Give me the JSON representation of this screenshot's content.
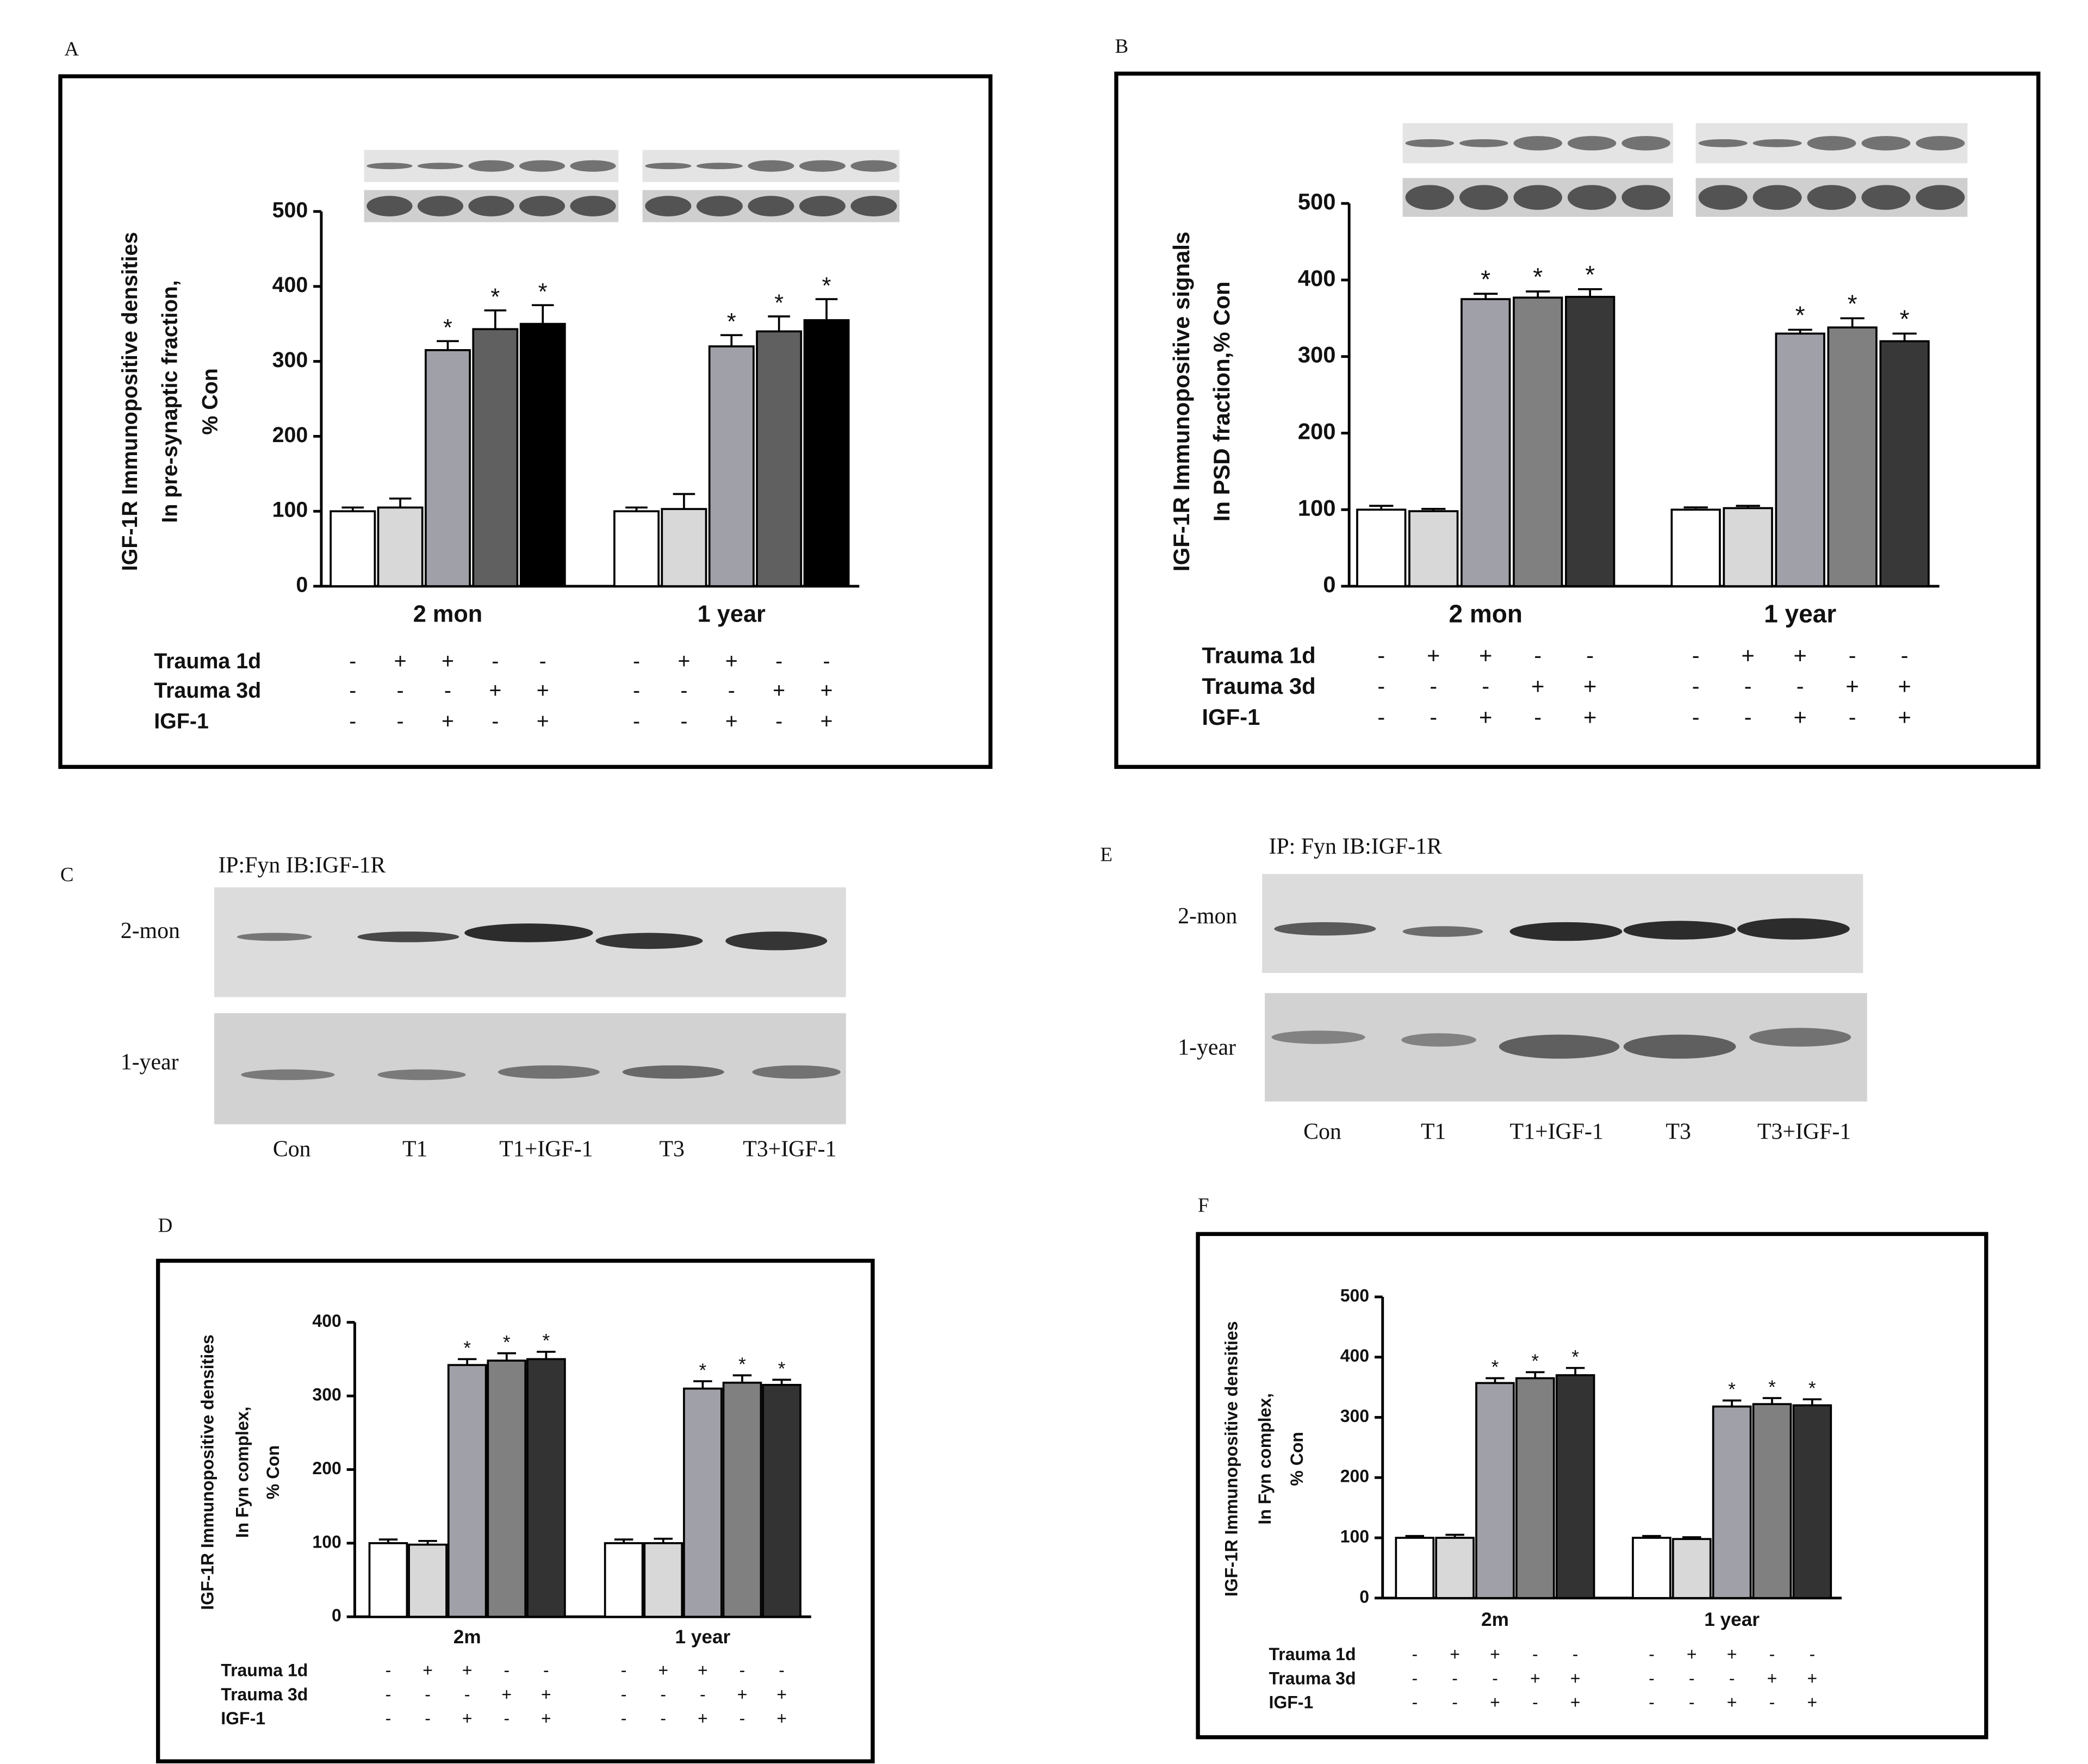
{
  "chart_data": [
    {
      "type": "bar",
      "panel": "A",
      "ylabel": [
        "IGF-1R Immunopositive densities",
        "In pre-synaptic fraction,",
        "% Con"
      ],
      "categories": [
        "2 mon",
        "1 year"
      ],
      "series": [
        {
          "color": "#ffffff",
          "values": [
            100,
            100
          ],
          "errors": [
            5,
            5
          ]
        },
        {
          "color": "#d8d8d8",
          "values": [
            105,
            103
          ],
          "errors": [
            12,
            20
          ]
        },
        {
          "color": "#a0a0a8",
          "values": [
            315,
            320
          ],
          "errors": [
            12,
            15
          ],
          "significance": "*"
        },
        {
          "color": "#606060",
          "values": [
            343,
            340
          ],
          "errors": [
            25,
            20
          ],
          "significance": "*"
        },
        {
          "color": "#000000",
          "values": [
            350,
            355
          ],
          "errors": [
            25,
            28
          ],
          "significance": "*"
        }
      ],
      "ylim": [
        0,
        500
      ],
      "yticks": [
        0,
        100,
        200,
        300,
        400,
        500
      ],
      "treatment_table": [
        {
          "label": "Trauma 1d",
          "signs": [
            "-",
            "+",
            "+",
            "-",
            "-",
            "-",
            "+",
            "+",
            "-",
            "-"
          ]
        },
        {
          "label": "Trauma 3d",
          "signs": [
            "-",
            "-",
            "-",
            "+",
            "+",
            "-",
            "-",
            "-",
            "+",
            "+"
          ]
        },
        {
          "label": "IGF-1",
          "signs": [
            "-",
            "-",
            "+",
            "-",
            "+",
            "-",
            "-",
            "+",
            "-",
            "+"
          ]
        }
      ]
    },
    {
      "type": "bar",
      "panel": "B",
      "ylabel": [
        "IGF-1R Immunopositive signals",
        "In PSD fraction,% Con"
      ],
      "categories": [
        "2 mon",
        "1 year"
      ],
      "series": [
        {
          "color": "#ffffff",
          "values": [
            100,
            100
          ],
          "errors": [
            5,
            3
          ]
        },
        {
          "color": "#d8d8d8",
          "values": [
            98,
            102
          ],
          "errors": [
            3,
            3
          ]
        },
        {
          "color": "#a0a0a8",
          "values": [
            375,
            330
          ],
          "errors": [
            7,
            5
          ],
          "significance": "*"
        },
        {
          "color": "#808080",
          "values": [
            377,
            338
          ],
          "errors": [
            8,
            12
          ],
          "significance": "*"
        },
        {
          "color": "#383838",
          "values": [
            378,
            320
          ],
          "errors": [
            10,
            10
          ],
          "significance": "*"
        }
      ],
      "ylim": [
        0,
        500
      ],
      "yticks": [
        0,
        100,
        200,
        300,
        400,
        500
      ],
      "treatment_table": [
        {
          "label": "Trauma 1d",
          "signs": [
            "-",
            "+",
            "+",
            "-",
            "-",
            "-",
            "+",
            "+",
            "-",
            "-"
          ]
        },
        {
          "label": "Trauma 3d",
          "signs": [
            "-",
            "-",
            "-",
            "+",
            "+",
            "-",
            "-",
            "-",
            "+",
            "+"
          ]
        },
        {
          "label": "IGF-1",
          "signs": [
            "-",
            "-",
            "+",
            "-",
            "+",
            "-",
            "-",
            "+",
            "-",
            "+"
          ]
        }
      ]
    },
    {
      "type": "bar",
      "panel": "D",
      "ylabel": [
        "IGF-1R Immunopositive densities",
        "In Fyn complex,",
        "% Con"
      ],
      "categories": [
        "2m",
        "1 year"
      ],
      "series": [
        {
          "color": "#ffffff",
          "values": [
            100,
            100
          ],
          "errors": [
            5,
            5
          ]
        },
        {
          "color": "#d8d8d8",
          "values": [
            98,
            100
          ],
          "errors": [
            5,
            6
          ]
        },
        {
          "color": "#a0a0a8",
          "values": [
            342,
            310
          ],
          "errors": [
            8,
            10
          ],
          "significance": "*"
        },
        {
          "color": "#808080",
          "values": [
            348,
            318
          ],
          "errors": [
            10,
            10
          ],
          "significance": "*"
        },
        {
          "color": "#333333",
          "values": [
            350,
            315
          ],
          "errors": [
            10,
            7
          ],
          "significance": "*"
        }
      ],
      "ylim": [
        0,
        400
      ],
      "yticks": [
        0,
        100,
        200,
        300,
        400
      ],
      "treatment_table": [
        {
          "label": "Trauma 1d",
          "signs": [
            "-",
            "+",
            "+",
            "-",
            "-",
            "-",
            "+",
            "+",
            "-",
            "-"
          ]
        },
        {
          "label": "Trauma 3d",
          "signs": [
            "-",
            "-",
            "-",
            "+",
            "+",
            "-",
            "-",
            "-",
            "+",
            "+"
          ]
        },
        {
          "label": "IGF-1",
          "signs": [
            "-",
            "-",
            "+",
            "-",
            "+",
            "-",
            "-",
            "+",
            "-",
            "+"
          ]
        }
      ]
    },
    {
      "type": "bar",
      "panel": "F",
      "ylabel": [
        "IGF-1R Immunopositive densities",
        "In Fyn complex,",
        "% Con"
      ],
      "categories": [
        "2m",
        "1 year"
      ],
      "series": [
        {
          "color": "#ffffff",
          "values": [
            100,
            100
          ],
          "errors": [
            3,
            3
          ]
        },
        {
          "color": "#d8d8d8",
          "values": [
            100,
            98
          ],
          "errors": [
            5,
            3
          ]
        },
        {
          "color": "#a0a0a8",
          "values": [
            357,
            318
          ],
          "errors": [
            8,
            10
          ],
          "significance": "*"
        },
        {
          "color": "#808080",
          "values": [
            365,
            322
          ],
          "errors": [
            10,
            10
          ],
          "significance": "*"
        },
        {
          "color": "#333333",
          "values": [
            370,
            320
          ],
          "errors": [
            12,
            10
          ],
          "significance": "*"
        }
      ],
      "ylim": [
        0,
        500
      ],
      "yticks": [
        0,
        100,
        200,
        300,
        400,
        500
      ],
      "treatment_table": [
        {
          "label": "Trauma 1d",
          "signs": [
            "-",
            "+",
            "+",
            "-",
            "-",
            "-",
            "+",
            "+",
            "-",
            "-"
          ]
        },
        {
          "label": "Trauma 3d",
          "signs": [
            "-",
            "-",
            "-",
            "+",
            "+",
            "-",
            "-",
            "-",
            "+",
            "+"
          ]
        },
        {
          "label": "IGF-1",
          "signs": [
            "-",
            "-",
            "+",
            "-",
            "+",
            "-",
            "-",
            "+",
            "-",
            "+"
          ]
        }
      ]
    }
  ],
  "blots": [
    {
      "panel": "C",
      "title": "IP:Fyn  IB:IGF-1R",
      "rows": [
        "2-mon",
        "1-year"
      ],
      "lanes": [
        "Con",
        "T1",
        "T1+IGF-1",
        "T3",
        "T3+IGF-1"
      ]
    },
    {
      "panel": "E",
      "title": "IP: Fyn  IB:IGF-1R",
      "rows": [
        "2-mon",
        "1-year"
      ],
      "lanes": [
        "Con",
        "T1",
        "T1+IGF-1",
        "T3",
        "T3+IGF-1"
      ]
    }
  ]
}
